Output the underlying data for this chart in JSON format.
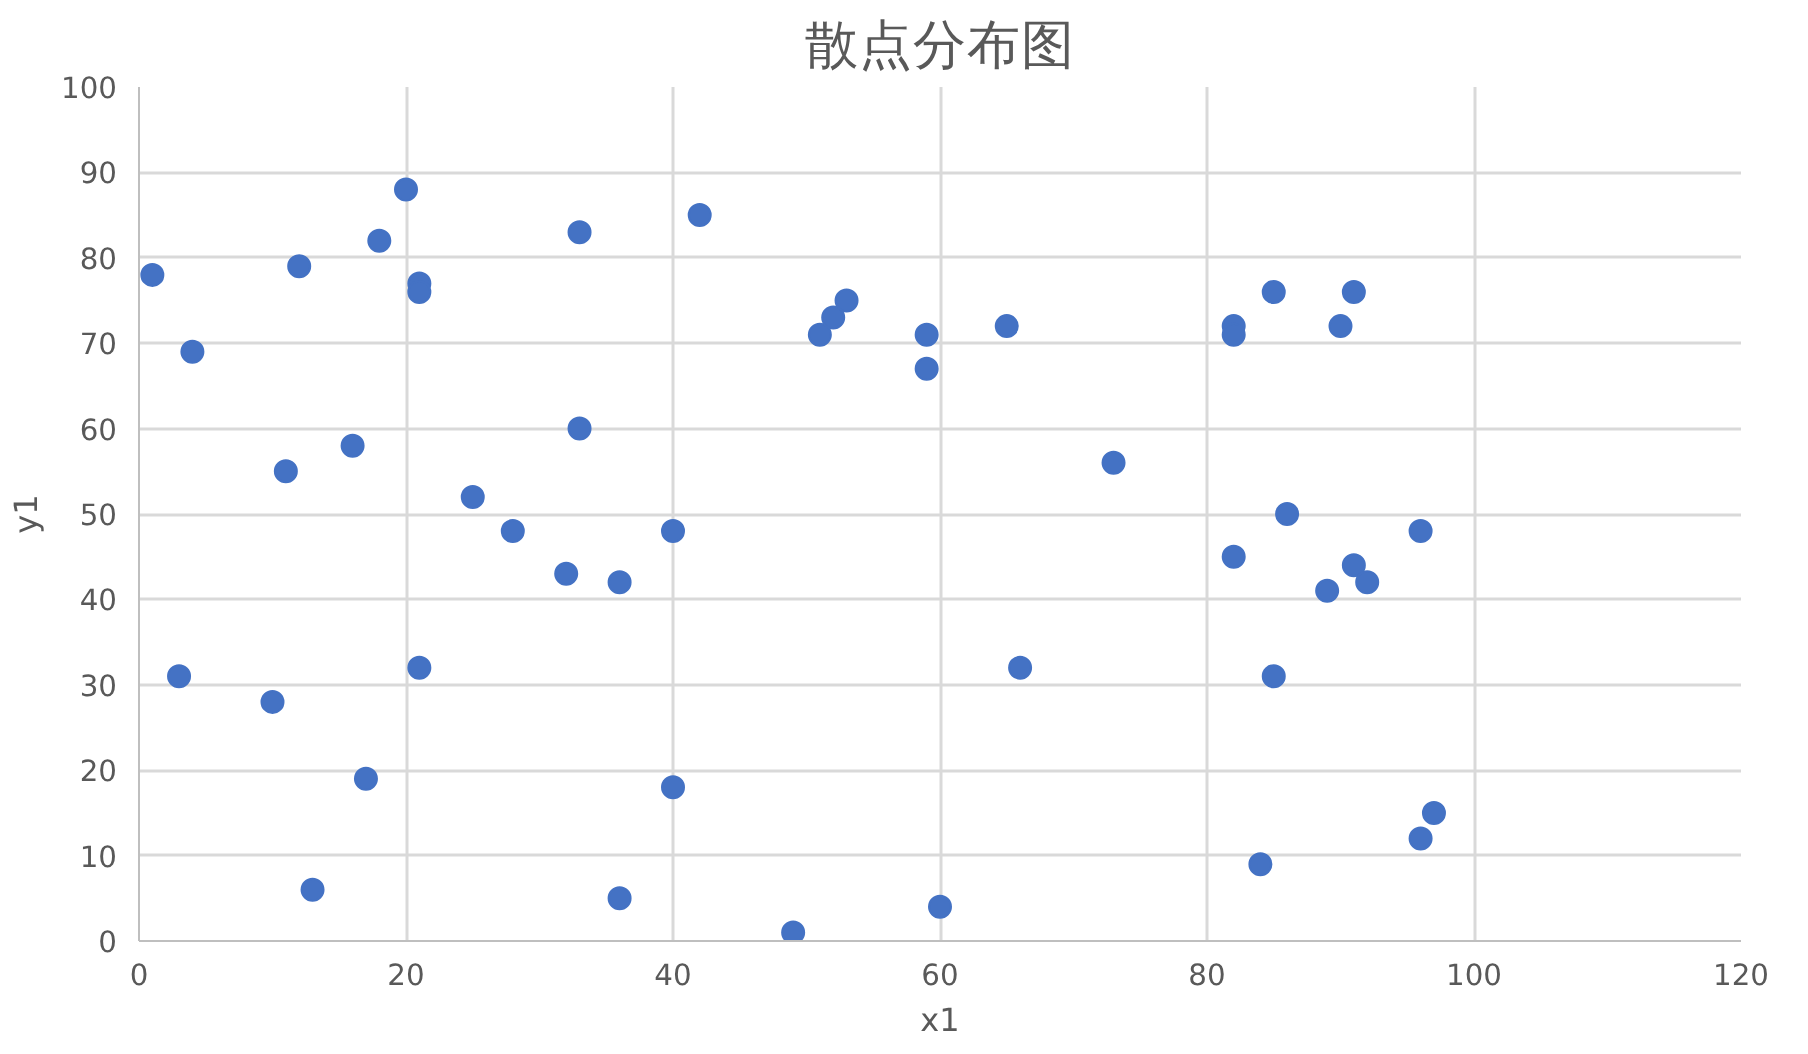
{
  "chart_data": {
    "type": "scatter",
    "title": "散点分布图",
    "xlabel": "x1",
    "ylabel": "y1",
    "x": [
      1,
      4,
      3,
      10,
      11,
      12,
      13,
      16,
      17,
      18,
      20,
      21,
      21,
      21,
      25,
      28,
      32,
      33,
      33,
      36,
      36,
      40,
      40,
      42,
      49,
      51,
      52,
      53,
      59,
      59,
      60,
      65,
      66,
      73,
      82,
      82,
      82,
      84,
      85,
      85,
      86,
      89,
      90,
      91,
      91,
      92,
      96,
      96,
      97
    ],
    "series": [
      {
        "color": "#4472c4",
        "values": [
          78,
          69,
          31,
          28,
          55,
          79,
          6,
          58,
          19,
          82,
          88,
          77,
          76,
          32,
          52,
          48,
          43,
          83,
          60,
          42,
          5,
          48,
          18,
          85,
          1,
          71,
          73,
          75,
          71,
          67,
          4,
          72,
          32,
          56,
          72,
          71,
          45,
          9,
          76,
          31,
          50,
          41,
          72,
          76,
          44,
          42,
          48,
          12,
          15
        ]
      }
    ],
    "xlim": [
      0,
      120
    ],
    "xticks": [
      0,
      20,
      40,
      60,
      80,
      100,
      120
    ],
    "ylim": [
      0,
      100
    ],
    "yticks": [
      0,
      10,
      20,
      30,
      40,
      50,
      60,
      70,
      80,
      90,
      100
    ],
    "grid": true,
    "marker": "circle"
  }
}
